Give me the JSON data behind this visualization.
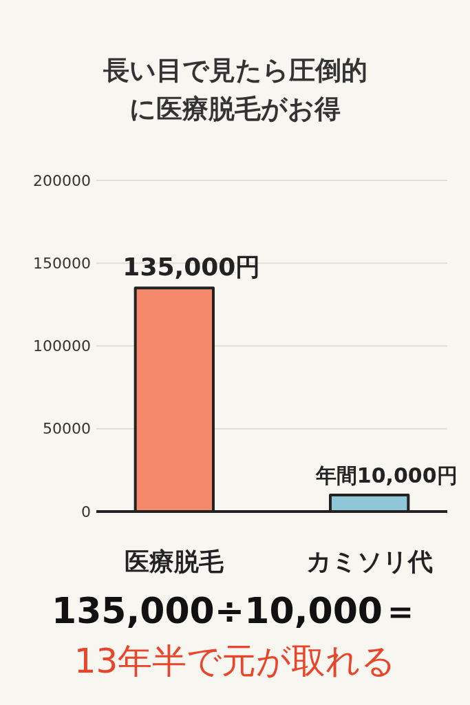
{
  "chart_data": {
    "type": "bar",
    "title": "長い目で見たら圧倒的に医療脱毛がお得",
    "categories": [
      "医療脱毛",
      "カミソリ代"
    ],
    "values": [
      135000,
      10000
    ],
    "colors": [
      "#f4896b",
      "#8fc6d8"
    ],
    "value_labels": [
      "135,000円",
      "年間10,000円"
    ],
    "ylim": [
      0,
      200000
    ],
    "yticks": [
      0,
      50000,
      100000,
      150000,
      200000
    ],
    "grid": "y",
    "annotations": [
      "135,000÷10,000＝",
      "13年半で元が取れる"
    ]
  }
}
